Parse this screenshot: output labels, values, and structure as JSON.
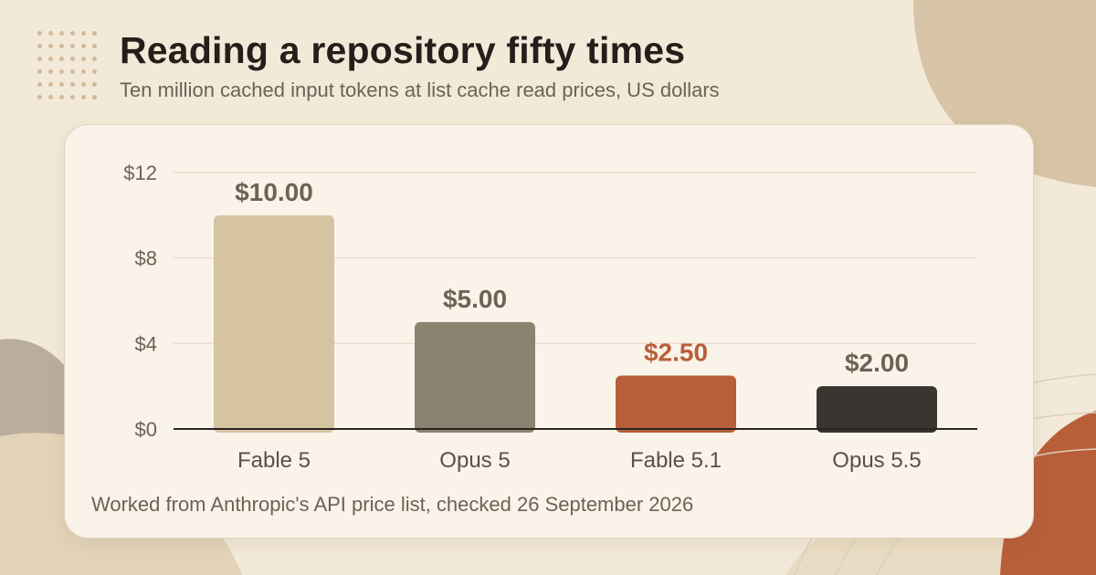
{
  "header": {
    "title": "Reading a repository fifty times",
    "subtitle": "Ten million cached input tokens at list cache read prices, US dollars"
  },
  "footnote": "Worked from Anthropic's API price list, checked 26 September 2026",
  "colors": {
    "background": "#f3e9d8",
    "card": "#faf3e9",
    "text_dark": "#241f1b",
    "text_muted": "#6c6256",
    "accent": "#b85f3a"
  },
  "chart_data": {
    "type": "bar",
    "categories": [
      "Fable 5",
      "Opus 5",
      "Fable 5.1",
      "Opus 5.5"
    ],
    "values": [
      10.0,
      5.0,
      2.5,
      2.0
    ],
    "value_labels": [
      "$10.00",
      "$5.00",
      "$2.50",
      "$2.00"
    ],
    "bar_colors": [
      "#d6c3a1",
      "#8c8270",
      "#b85f3a",
      "#3a3531"
    ],
    "label_colors": [
      "#6b6355",
      "#6b6355",
      "#b85f3a",
      "#6b6355"
    ],
    "yticks": [
      0,
      4,
      8,
      12
    ],
    "ytick_labels": [
      "$0",
      "$4",
      "$8",
      "$12"
    ],
    "ylim": [
      0,
      12
    ],
    "grid": true,
    "xlabel": "",
    "ylabel": ""
  }
}
